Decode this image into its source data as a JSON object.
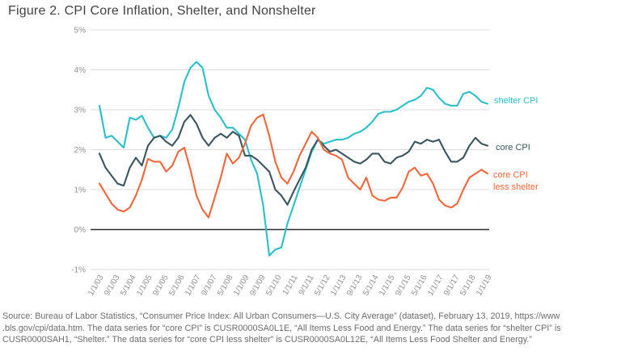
{
  "title": "Figure 2. CPI Core Inflation, Shelter, and Nonshelter",
  "colors": {
    "background": "#ffffff",
    "title_text": "#414141",
    "axis_text": "#909090",
    "grid": "#dbdbdb",
    "zero_line": "#2d2d2d",
    "source_text": "#6b6b6b",
    "shelter_teal": "#2bbfc9",
    "core_slate": "#3a555e",
    "core_less_shelter_orange": "#f0673c"
  },
  "chart_data": {
    "type": "line",
    "title": "Figure 2. CPI Core Inflation, Shelter, and Nonshelter",
    "xlabel": "",
    "ylabel": "",
    "ylim": [
      -1,
      5
    ],
    "x_range_dates": [
      "1/1/03",
      "1/1/19"
    ],
    "grid": "horizontal",
    "legend_position": "right-of-line-ends",
    "y_ticks": [
      {
        "label": "5%",
        "value": 5
      },
      {
        "label": "4%",
        "value": 4
      },
      {
        "label": "3%",
        "value": 3
      },
      {
        "label": "2%",
        "value": 2
      },
      {
        "label": "1%",
        "value": 1
      },
      {
        "label": "0%",
        "value": 0
      },
      {
        "label": "-1%",
        "value": -1
      }
    ],
    "x_tick_labels": [
      "1/1/03",
      "9/1/03",
      "5/1/04",
      "1/1/05",
      "9/1/05",
      "5/1/06",
      "1/1/07",
      "9/1/07",
      "5/1/08",
      "1/1/09",
      "9/1/09",
      "5/1/10",
      "1/1/11",
      "9/1/11",
      "5/1/12",
      "1/1/13",
      "9/1/13",
      "5/1/14",
      "1/1/15",
      "9/1/15",
      "5/1/16",
      "1/1/17",
      "9/1/17",
      "5/1/18",
      "1/1/19"
    ],
    "x_tick_interval_months": 8,
    "sampling": "quarterly year-over-year percent, Jan 2003 through Jan 2019",
    "series": [
      {
        "name": "shelter CPI",
        "label_lines": [
          "shelter CPI"
        ],
        "color": "#2bbfc9",
        "x_start_year": 2003.0,
        "x_step_years": 0.25,
        "values": [
          3.1,
          2.3,
          2.35,
          2.2,
          2.05,
          2.8,
          2.75,
          2.85,
          2.55,
          2.3,
          2.35,
          2.3,
          2.5,
          3.05,
          3.7,
          4.05,
          4.2,
          4.05,
          3.35,
          3.0,
          2.8,
          2.55,
          2.55,
          2.4,
          2.25,
          1.75,
          1.4,
          0.6,
          -0.65,
          -0.5,
          -0.45,
          0.15,
          0.6,
          1.05,
          1.5,
          1.95,
          2.25,
          2.15,
          2.2,
          2.25,
          2.25,
          2.3,
          2.4,
          2.45,
          2.55,
          2.7,
          2.9,
          2.95,
          2.95,
          3.0,
          3.1,
          3.2,
          3.25,
          3.35,
          3.55,
          3.5,
          3.3,
          3.15,
          3.1,
          3.1,
          3.4,
          3.45,
          3.35,
          3.2,
          3.15
        ]
      },
      {
        "name": "core CPI",
        "label_lines": [
          "core CPI"
        ],
        "color": "#3a555e",
        "x_start_year": 2003.0,
        "x_step_years": 0.25,
        "values": [
          1.9,
          1.55,
          1.35,
          1.15,
          1.1,
          1.55,
          1.8,
          1.6,
          2.1,
          2.3,
          2.35,
          2.2,
          2.1,
          2.3,
          2.7,
          2.87,
          2.65,
          2.3,
          2.1,
          2.3,
          2.4,
          2.3,
          2.45,
          2.35,
          1.85,
          1.85,
          1.75,
          1.6,
          1.45,
          1.0,
          0.85,
          0.62,
          0.95,
          1.25,
          1.55,
          2.0,
          2.25,
          2.1,
          1.95,
          2.0,
          1.9,
          1.8,
          1.7,
          1.65,
          1.75,
          1.9,
          1.9,
          1.7,
          1.65,
          1.8,
          1.85,
          1.95,
          2.2,
          2.15,
          2.25,
          2.2,
          2.25,
          1.95,
          1.7,
          1.7,
          1.8,
          2.1,
          2.3,
          2.15,
          2.1
        ]
      },
      {
        "name": "core CPI less shelter",
        "label_lines": [
          "core CPI",
          "less shelter"
        ],
        "color": "#f0673c",
        "x_start_year": 2003.0,
        "x_step_years": 0.25,
        "values": [
          1.15,
          0.9,
          0.65,
          0.5,
          0.45,
          0.55,
          0.85,
          1.25,
          1.77,
          1.7,
          1.7,
          1.45,
          1.6,
          1.95,
          2.05,
          1.5,
          0.85,
          0.5,
          0.3,
          0.8,
          1.3,
          1.9,
          1.65,
          1.8,
          2.15,
          2.6,
          2.8,
          2.88,
          2.35,
          1.7,
          1.3,
          1.15,
          1.45,
          1.85,
          2.15,
          2.45,
          2.3,
          2.0,
          1.9,
          1.85,
          1.75,
          1.3,
          1.15,
          1.0,
          1.3,
          0.85,
          0.75,
          0.72,
          0.8,
          0.8,
          1.05,
          1.45,
          1.55,
          1.35,
          1.4,
          1.15,
          0.75,
          0.6,
          0.55,
          0.65,
          1.0,
          1.3,
          1.4,
          1.5,
          1.4
        ]
      }
    ]
  },
  "source_note": {
    "lines": [
      "Source: Bureau of Labor Statistics, “Consumer Price Index: All Urban Consumers—U.S. City Average” (dataset), February 13, 2019, https://www",
      ".bls.gov/cpi/data.htm. The data series for “core CPI” is CUSR0000SA0L1E, “All Items Less Food and Energy.” The data series for “shelter CPI” is",
      "CUSR0000SAH1, “Shelter.” The data series for “core CPI less shelter” is CUSR0000SA0L12E, “All Items Less Food Shelter and Energy.”"
    ]
  }
}
